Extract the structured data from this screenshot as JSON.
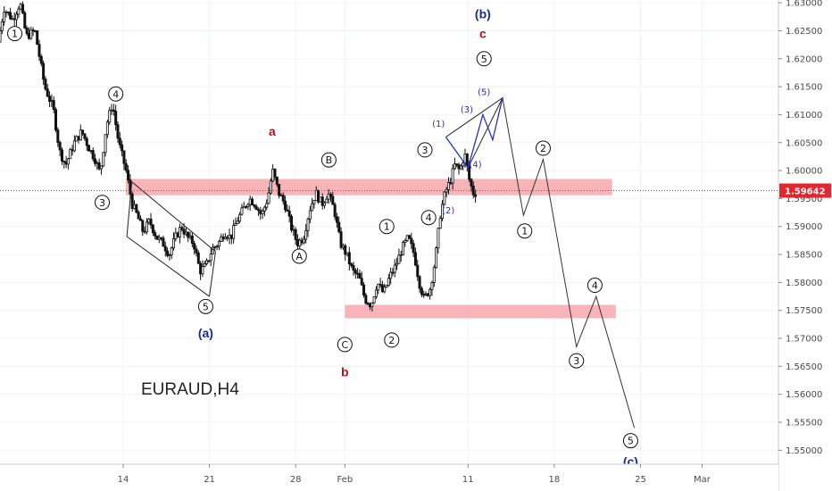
{
  "chart_data": {
    "type": "candlestick",
    "title": "EURAUD,H4",
    "symbol": "EURAUD",
    "timeframe": "H4",
    "ylim": [
      1.5475,
      1.6305
    ],
    "y_ticks": [
      "1.63000",
      "1.62500",
      "1.62000",
      "1.61500",
      "1.61000",
      "1.60500",
      "1.60000",
      "1.59500",
      "1.59000",
      "1.58500",
      "1.58000",
      "1.57500",
      "1.57000",
      "1.56500",
      "1.56000",
      "1.55500",
      "1.55000"
    ],
    "x_ticks": [
      {
        "label": "14",
        "day": 14
      },
      {
        "label": "21",
        "day": 21
      },
      {
        "label": "28",
        "day": 28
      },
      {
        "label": "Feb",
        "day": 32
      },
      {
        "label": "11",
        "day": 42
      },
      {
        "label": "18",
        "day": 49
      },
      {
        "label": "25",
        "day": 56
      },
      {
        "label": "Mar",
        "day": 61
      }
    ],
    "xlim_days": [
      4.0,
      67.2
    ],
    "last_price": {
      "label": "1.59642",
      "value": 1.59642,
      "color": "#e0282e"
    },
    "price_path": [
      [
        4.0,
        1.623
      ],
      [
        4.5,
        1.629
      ],
      [
        5.2,
        1.627
      ],
      [
        5.8,
        1.63
      ],
      [
        6.3,
        1.624
      ],
      [
        7.0,
        1.625
      ],
      [
        7.8,
        1.615
      ],
      [
        8.5,
        1.611
      ],
      [
        9.0,
        1.6035
      ],
      [
        9.5,
        1.601
      ],
      [
        10.2,
        1.605
      ],
      [
        10.8,
        1.607
      ],
      [
        11.4,
        1.604
      ],
      [
        11.9,
        1.602
      ],
      [
        12.3,
        1.5995
      ],
      [
        12.8,
        1.608
      ],
      [
        13.3,
        1.612
      ],
      [
        13.8,
        1.605
      ],
      [
        14.4,
        1.6
      ],
      [
        14.9,
        1.594
      ],
      [
        15.3,
        1.592
      ],
      [
        15.8,
        1.589
      ],
      [
        16.3,
        1.591
      ],
      [
        16.9,
        1.588
      ],
      [
        17.4,
        1.587
      ],
      [
        17.9,
        1.585
      ],
      [
        18.4,
        1.588
      ],
      [
        18.9,
        1.59
      ],
      [
        19.4,
        1.588
      ],
      [
        19.9,
        1.587
      ],
      [
        20.4,
        1.582
      ],
      [
        20.9,
        1.583
      ],
      [
        21.4,
        1.586
      ],
      [
        21.9,
        1.587
      ],
      [
        22.4,
        1.589
      ],
      [
        22.9,
        1.588
      ],
      [
        23.4,
        1.591
      ],
      [
        23.9,
        1.593
      ],
      [
        24.4,
        1.595
      ],
      [
        24.9,
        1.594
      ],
      [
        25.4,
        1.592
      ],
      [
        25.9,
        1.595
      ],
      [
        26.3,
        1.6
      ],
      [
        26.8,
        1.596
      ],
      [
        27.3,
        1.594
      ],
      [
        27.8,
        1.59
      ],
      [
        28.3,
        1.587
      ],
      [
        28.8,
        1.588
      ],
      [
        29.3,
        1.593
      ],
      [
        29.8,
        1.596
      ],
      [
        30.3,
        1.594
      ],
      [
        30.8,
        1.596
      ],
      [
        31.3,
        1.593
      ],
      [
        31.8,
        1.587
      ],
      [
        32.3,
        1.585
      ],
      [
        32.8,
        1.582
      ],
      [
        33.3,
        1.581
      ],
      [
        33.8,
        1.577
      ],
      [
        34.3,
        1.576
      ],
      [
        34.8,
        1.58
      ],
      [
        35.3,
        1.578
      ],
      [
        35.8,
        1.581
      ],
      [
        36.3,
        1.583
      ],
      [
        36.8,
        1.586
      ],
      [
        37.3,
        1.588
      ],
      [
        37.8,
        1.585
      ],
      [
        38.2,
        1.58
      ],
      [
        38.6,
        1.577
      ],
      [
        39.1,
        1.579
      ],
      [
        39.5,
        1.584
      ],
      [
        39.9,
        1.592
      ],
      [
        40.3,
        1.596
      ],
      [
        40.7,
        1.598
      ],
      [
        41.1,
        1.601
      ],
      [
        41.5,
        1.6
      ],
      [
        41.9,
        1.603
      ],
      [
        42.3,
        1.598
      ],
      [
        42.6,
        1.596
      ]
    ],
    "zones": [
      {
        "name": "resistance-zone",
        "day_from": 14.2,
        "day_to": 53.7,
        "y_top": 1.5985,
        "y_bottom": 1.5956,
        "color": "#f7a7ab"
      },
      {
        "name": "support-zone",
        "day_from": 32.0,
        "day_to": 54.0,
        "y_top": 1.576,
        "y_bottom": 1.5736,
        "color": "#f7a7ab"
      }
    ],
    "channel": {
      "lower": [
        [
          14.3,
          1.5882
        ],
        [
          21.0,
          1.5775
        ]
      ],
      "upper": [
        [
          14.7,
          1.598
        ],
        [
          21.5,
          1.5855
        ]
      ]
    },
    "diagonal": {
      "points": [
        [
          40.2,
          1.606
        ],
        [
          42.0,
          1.6005
        ],
        [
          43.2,
          1.61
        ],
        [
          44.0,
          1.6055
        ],
        [
          44.8,
          1.613
        ],
        [
          43.3,
          1.6128
        ]
      ],
      "outline": [
        [
          40.2,
          1.606
        ],
        [
          44.8,
          1.613
        ],
        [
          42.0,
          1.6005
        ]
      ]
    },
    "projection": [
      [
        44.8,
        1.613
      ],
      [
        46.5,
        1.592
      ],
      [
        48.1,
        1.602
      ],
      [
        50.8,
        1.5685
      ],
      [
        52.4,
        1.5775
      ],
      [
        55.5,
        1.554
      ]
    ],
    "wave_labels": [
      {
        "text": "1",
        "day": 5.2,
        "price": 1.6245,
        "style": "circle"
      },
      {
        "text": "4",
        "day": 13.4,
        "price": 1.6137,
        "style": "circle"
      },
      {
        "text": "3",
        "day": 12.3,
        "price": 1.5943,
        "style": "circle"
      },
      {
        "text": "5",
        "day": 20.7,
        "price": 1.5757,
        "style": "circle"
      },
      {
        "text": "B",
        "day": 30.7,
        "price": 1.6019,
        "style": "circle"
      },
      {
        "text": "A",
        "day": 28.3,
        "price": 1.5847,
        "style": "circle"
      },
      {
        "text": "C",
        "day": 32.0,
        "price": 1.5689,
        "style": "circle"
      },
      {
        "text": "1",
        "day": 35.4,
        "price": 1.59,
        "style": "circle"
      },
      {
        "text": "2",
        "day": 35.8,
        "price": 1.5697,
        "style": "circle"
      },
      {
        "text": "3",
        "day": 38.5,
        "price": 1.6037,
        "style": "circle"
      },
      {
        "text": "4",
        "day": 38.8,
        "price": 1.5916,
        "style": "circle"
      },
      {
        "text": "5",
        "day": 43.3,
        "price": 1.62,
        "style": "circle"
      },
      {
        "text": "2",
        "day": 48.1,
        "price": 1.604,
        "style": "circle"
      },
      {
        "text": "1",
        "day": 46.6,
        "price": 1.5892,
        "style": "circle"
      },
      {
        "text": "4",
        "day": 52.3,
        "price": 1.5795,
        "style": "circle"
      },
      {
        "text": "3",
        "day": 50.8,
        "price": 1.566,
        "style": "circle"
      },
      {
        "text": "5",
        "day": 55.2,
        "price": 1.5517,
        "style": "circle"
      },
      {
        "text": "(1)",
        "day": 39.6,
        "price": 1.6085,
        "style": "blue"
      },
      {
        "text": "(3)",
        "day": 41.9,
        "price": 1.611,
        "style": "blue"
      },
      {
        "text": "(4)",
        "day": 42.6,
        "price": 1.6012,
        "style": "blue"
      },
      {
        "text": "(5)",
        "day": 43.3,
        "price": 1.6141,
        "style": "blue"
      },
      {
        "text": "(2)",
        "day": 40.4,
        "price": 1.593,
        "style": "blue"
      }
    ],
    "degree_labels": [
      {
        "text": "(a)",
        "day": 20.7,
        "price": 1.571,
        "color": "#1c2a8a"
      },
      {
        "text": "a",
        "day": 26.1,
        "price": 1.607,
        "color": "#b1121b"
      },
      {
        "text": "b",
        "day": 32.0,
        "price": 1.564,
        "color": "#b1121b"
      },
      {
        "text": "(b)",
        "day": 43.2,
        "price": 1.628,
        "color": "#1c2a8a"
      },
      {
        "text": "c",
        "day": 43.2,
        "price": 1.6245,
        "color": "#b1121b"
      },
      {
        "text": "(c)",
        "day": 55.2,
        "price": 1.548,
        "color": "#1c2a8a"
      }
    ],
    "colors": {
      "candle": "#111111",
      "path": "#333333",
      "blue": "#2a2fbf"
    }
  }
}
